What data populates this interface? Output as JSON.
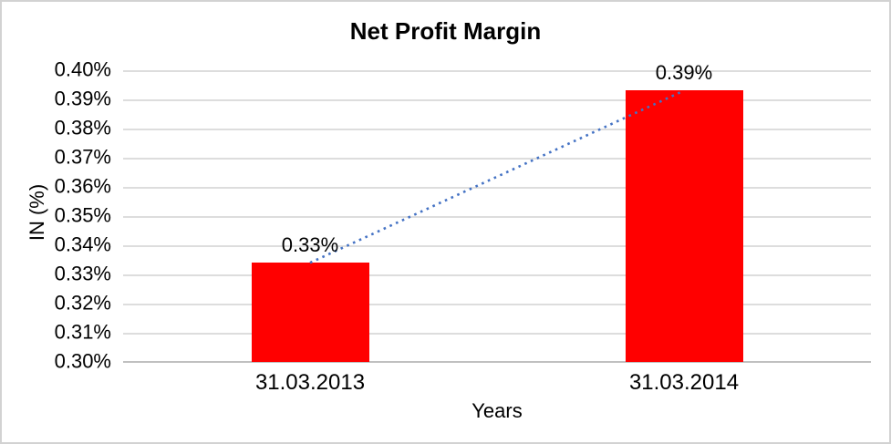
{
  "chart_data": {
    "type": "bar",
    "title": "Net Profit Margin",
    "xlabel": "Years",
    "ylabel": "IN (%)",
    "categories": [
      "31.03.2013",
      "31.03.2014"
    ],
    "series": [
      {
        "name": "Net Profit Margin",
        "values": [
          0.334,
          0.393
        ],
        "data_labels": [
          "0.33%",
          "0.39%"
        ],
        "color": "#ff0000"
      }
    ],
    "ylim": [
      0.3,
      0.4
    ],
    "ytick_values": [
      0.4,
      0.39,
      0.38,
      0.37,
      0.36,
      0.35,
      0.34,
      0.33,
      0.32,
      0.31,
      0.3
    ],
    "ytick_labels": [
      "0.40%",
      "0.39%",
      "0.38%",
      "0.37%",
      "0.36%",
      "0.35%",
      "0.34%",
      "0.33%",
      "0.32%",
      "0.31%",
      "0.30%"
    ],
    "grid": true,
    "legend_position": "none",
    "trendline": {
      "type": "linear",
      "style": "dotted",
      "color": "#4472c4",
      "connects": [
        0.334,
        0.393
      ]
    }
  }
}
